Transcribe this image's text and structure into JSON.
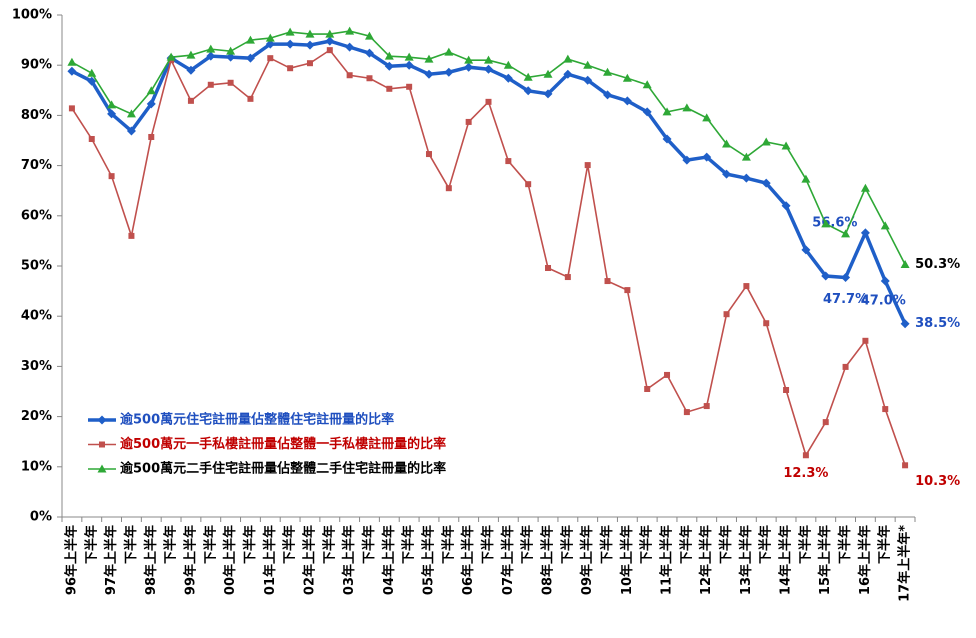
{
  "chart_data": {
    "type": "line",
    "categories": [
      "96年上半年",
      "下半年",
      "97年上半年",
      "下半年",
      "98年上半年",
      "下半年",
      "99年上半年",
      "下半年",
      "00年上半年",
      "下半年",
      "01年上半年",
      "下半年",
      "02年上半年",
      "下半年",
      "03年上半年",
      "下半年",
      "04年上半年",
      "下半年",
      "05年上半年",
      "下半年",
      "06年上半年",
      "下半年",
      "07年上半年",
      "下半年",
      "08年上半年",
      "下半年",
      "09年上半年",
      "下半年",
      "10年上半年",
      "下半年",
      "11年上半年",
      "下半年",
      "12年上半年",
      "下半年",
      "13年上半年",
      "下半年",
      "14年上半年",
      "下半年",
      "15年上半年",
      "下半年",
      "16年上半年",
      "下半年",
      "17年上半年*"
    ],
    "series": [
      {
        "name": "逾500萬元住宅註冊量佔整體住宅註冊量的比率",
        "color": "#1f5fc8",
        "label_color": "#1f4fbf",
        "marker": "diamond",
        "values": [
          88.8,
          86.8,
          80.3,
          76.9,
          82.3,
          91.4,
          89.0,
          91.8,
          91.6,
          91.4,
          94.2,
          94.2,
          94.0,
          94.8,
          93.6,
          92.4,
          89.8,
          90.0,
          88.2,
          88.6,
          89.6,
          89.2,
          87.4,
          84.9,
          84.3,
          88.2,
          87.0,
          84.1,
          82.9,
          80.7,
          75.3,
          71.1,
          71.7,
          68.3,
          67.5,
          66.5,
          62.0,
          53.2,
          48.0,
          47.7,
          56.6,
          47.0,
          38.5
        ],
        "value_labels": [
          null,
          null,
          null,
          null,
          null,
          null,
          null,
          null,
          null,
          null,
          null,
          null,
          null,
          null,
          null,
          null,
          null,
          null,
          null,
          null,
          null,
          null,
          null,
          null,
          null,
          null,
          null,
          null,
          null,
          null,
          null,
          null,
          null,
          null,
          null,
          null,
          null,
          null,
          null,
          "47.7%",
          "56.6%",
          "47.0%",
          "38.5%"
        ]
      },
      {
        "name": "逾500萬元一手私樓註冊量佔整體一手私樓註冊量的比率",
        "color": "#c0504d",
        "label_color": "#c00000",
        "marker": "square",
        "values": [
          81.4,
          75.3,
          67.9,
          56.0,
          75.7,
          91.0,
          82.9,
          86.1,
          86.5,
          83.3,
          91.4,
          89.4,
          90.4,
          93.0,
          88.0,
          87.4,
          85.3,
          85.7,
          72.3,
          65.5,
          78.7,
          82.7,
          70.9,
          66.3,
          49.6,
          47.8,
          70.1,
          47.0,
          45.2,
          25.5,
          28.3,
          20.9,
          22.1,
          40.4,
          46.0,
          38.6,
          25.3,
          12.3,
          18.9,
          29.9,
          35.1,
          21.5,
          10.3
        ],
        "value_labels": [
          null,
          null,
          null,
          null,
          null,
          null,
          null,
          null,
          null,
          null,
          null,
          null,
          null,
          null,
          null,
          null,
          null,
          null,
          null,
          null,
          null,
          null,
          null,
          null,
          null,
          null,
          null,
          null,
          null,
          null,
          null,
          null,
          null,
          null,
          null,
          null,
          null,
          "12.3%",
          null,
          null,
          null,
          null,
          "10.3%"
        ]
      },
      {
        "name": "逾500萬元二手住宅註冊量佔整體二手住宅註冊量的比率",
        "color": "#2ea836",
        "label_color": "#000000",
        "marker": "triangle",
        "values": [
          90.6,
          88.4,
          82.1,
          80.3,
          84.9,
          91.6,
          92.0,
          93.2,
          92.8,
          95.0,
          95.4,
          96.6,
          96.2,
          96.2,
          96.8,
          95.8,
          91.8,
          91.6,
          91.2,
          92.6,
          91.0,
          91.0,
          90.0,
          87.6,
          88.2,
          91.2,
          90.0,
          88.6,
          87.4,
          86.1,
          80.7,
          81.5,
          79.5,
          74.3,
          71.7,
          74.7,
          73.9,
          67.3,
          58.4,
          56.4,
          65.5,
          58.0,
          50.3
        ],
        "value_labels": [
          null,
          null,
          null,
          null,
          null,
          null,
          null,
          null,
          null,
          null,
          null,
          null,
          null,
          null,
          null,
          null,
          null,
          null,
          null,
          null,
          null,
          null,
          null,
          null,
          null,
          null,
          null,
          null,
          null,
          null,
          null,
          null,
          null,
          null,
          null,
          null,
          null,
          null,
          null,
          null,
          null,
          null,
          "50.3%"
        ]
      }
    ],
    "ylim": [
      0,
      100
    ],
    "yticks": [
      {
        "value": 0,
        "label": "0%"
      },
      {
        "value": 10,
        "label": "10%"
      },
      {
        "value": 20,
        "label": "20%"
      },
      {
        "value": 30,
        "label": "30%"
      },
      {
        "value": 40,
        "label": "40%"
      },
      {
        "value": 50,
        "label": "50%"
      },
      {
        "value": 60,
        "label": "60%"
      },
      {
        "value": 70,
        "label": "70%"
      },
      {
        "value": 80,
        "label": "80%"
      },
      {
        "value": 90,
        "label": "90%"
      },
      {
        "value": 100,
        "label": "100%"
      }
    ],
    "grid": false,
    "legend": "lower-left"
  }
}
